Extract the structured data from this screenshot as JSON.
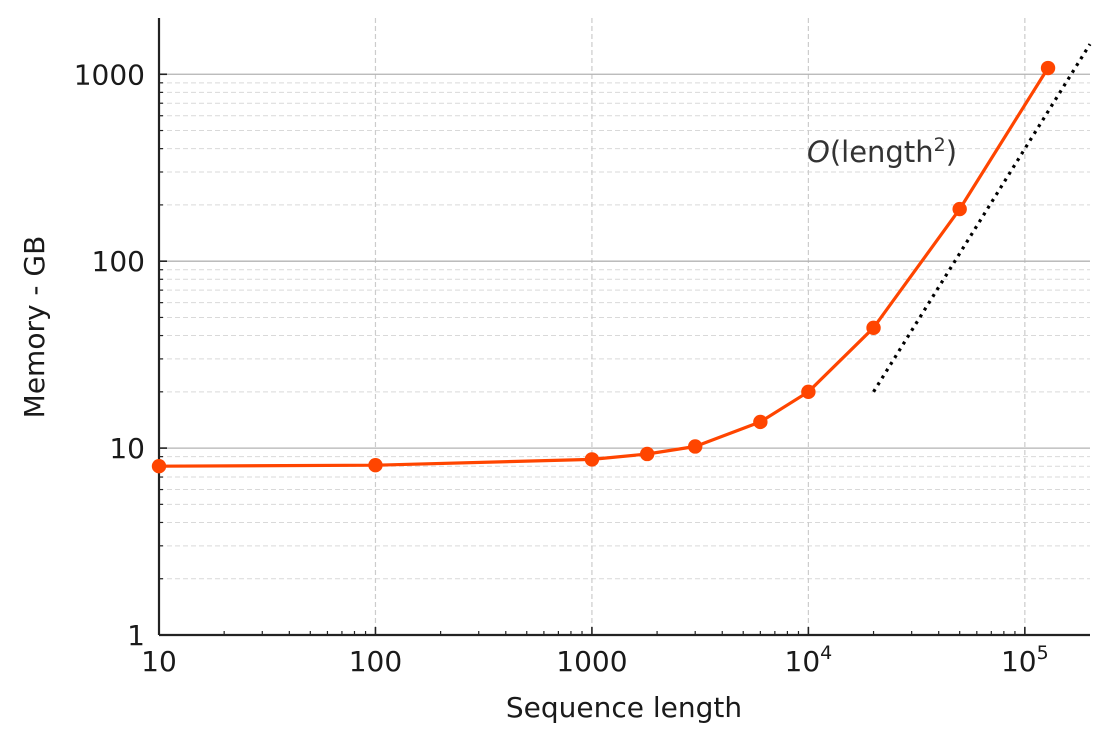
{
  "chart_data": {
    "type": "line",
    "xlabel": "Sequence length",
    "ylabel": "Memory - GB",
    "xscale": "log",
    "yscale": "log",
    "xlim": [
      10,
      200000
    ],
    "ylim": [
      1,
      2000
    ],
    "grid": "on (major solid, minor dashed)",
    "x_ticks": [
      {
        "value": 10,
        "label": "10"
      },
      {
        "value": 100,
        "label": "100"
      },
      {
        "value": 1000,
        "label": "1000"
      },
      {
        "value": 10000,
        "label": "10",
        "exp": "4"
      },
      {
        "value": 100000,
        "label": "10",
        "exp": "5"
      }
    ],
    "y_ticks": [
      {
        "value": 1,
        "label": "1"
      },
      {
        "value": 10,
        "label": "10"
      },
      {
        "value": 100,
        "label": "100"
      },
      {
        "value": 1000,
        "label": "1000"
      }
    ],
    "series": [
      {
        "color": "#ff4500",
        "marker": "circle",
        "x": [
          10,
          100,
          1000,
          1800,
          3000,
          6000,
          10000,
          20000,
          50000,
          128000
        ],
        "y": [
          8.0,
          8.1,
          8.7,
          9.3,
          10.2,
          13.8,
          20,
          44,
          190,
          1080
        ]
      }
    ],
    "reference_line": {
      "style": "dotted",
      "color": "#000000",
      "x": [
        20000,
        200000
      ],
      "y": [
        20,
        1450
      ]
    },
    "annotation": {
      "prefix": "O",
      "text": "(length",
      "exp": "2",
      "suffix": ")",
      "x": 10000,
      "y": 350
    }
  }
}
